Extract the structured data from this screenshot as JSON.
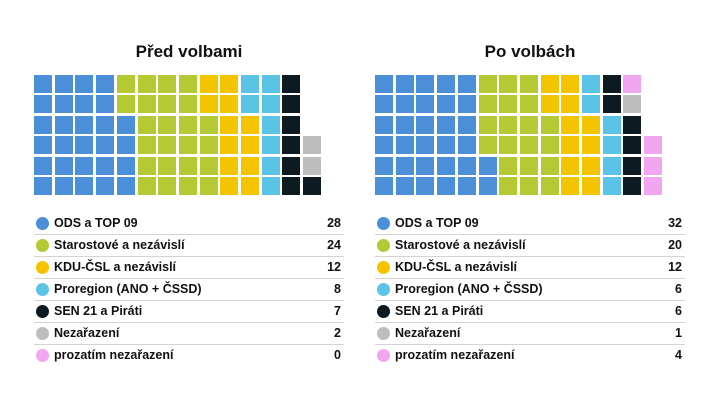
{
  "chart_data": [
    {
      "type": "waffle",
      "title": "Před volbami",
      "series": [
        {
          "name": "ODS a TOP 09",
          "value": 28,
          "color": "#4a8fd8"
        },
        {
          "name": "Starostové a nezávislí",
          "value": 24,
          "color": "#b5c935"
        },
        {
          "name": "KDU-ČSL a nezávislí",
          "value": 12,
          "color": "#f5c400"
        },
        {
          "name": "Proregion (ANO + ČSSD)",
          "value": 8,
          "color": "#5bc3e6"
        },
        {
          "name": "SEN 21 a Piráti",
          "value": 7,
          "color": "#0e1a22"
        },
        {
          "name": "Nezařazení",
          "value": 2,
          "color": "#bdbdbd"
        },
        {
          "name": "prozatím nezařazení",
          "value": 0,
          "color": "#f2a6f0"
        }
      ]
    },
    {
      "type": "waffle",
      "title": "Po volbách",
      "series": [
        {
          "name": "ODS a TOP 09",
          "value": 32,
          "color": "#4a8fd8"
        },
        {
          "name": "Starostové a nezávislí",
          "value": 20,
          "color": "#b5c935"
        },
        {
          "name": "KDU-ČSL a nezávislí",
          "value": 12,
          "color": "#f5c400"
        },
        {
          "name": "Proregion (ANO + ČSSD)",
          "value": 6,
          "color": "#5bc3e6"
        },
        {
          "name": "SEN 21 a Piráti",
          "value": 6,
          "color": "#0e1a22"
        },
        {
          "name": "Nezařazení",
          "value": 1,
          "color": "#bdbdbd"
        },
        {
          "name": "prozatím nezařazení",
          "value": 4,
          "color": "#f2a6f0"
        }
      ]
    }
  ]
}
